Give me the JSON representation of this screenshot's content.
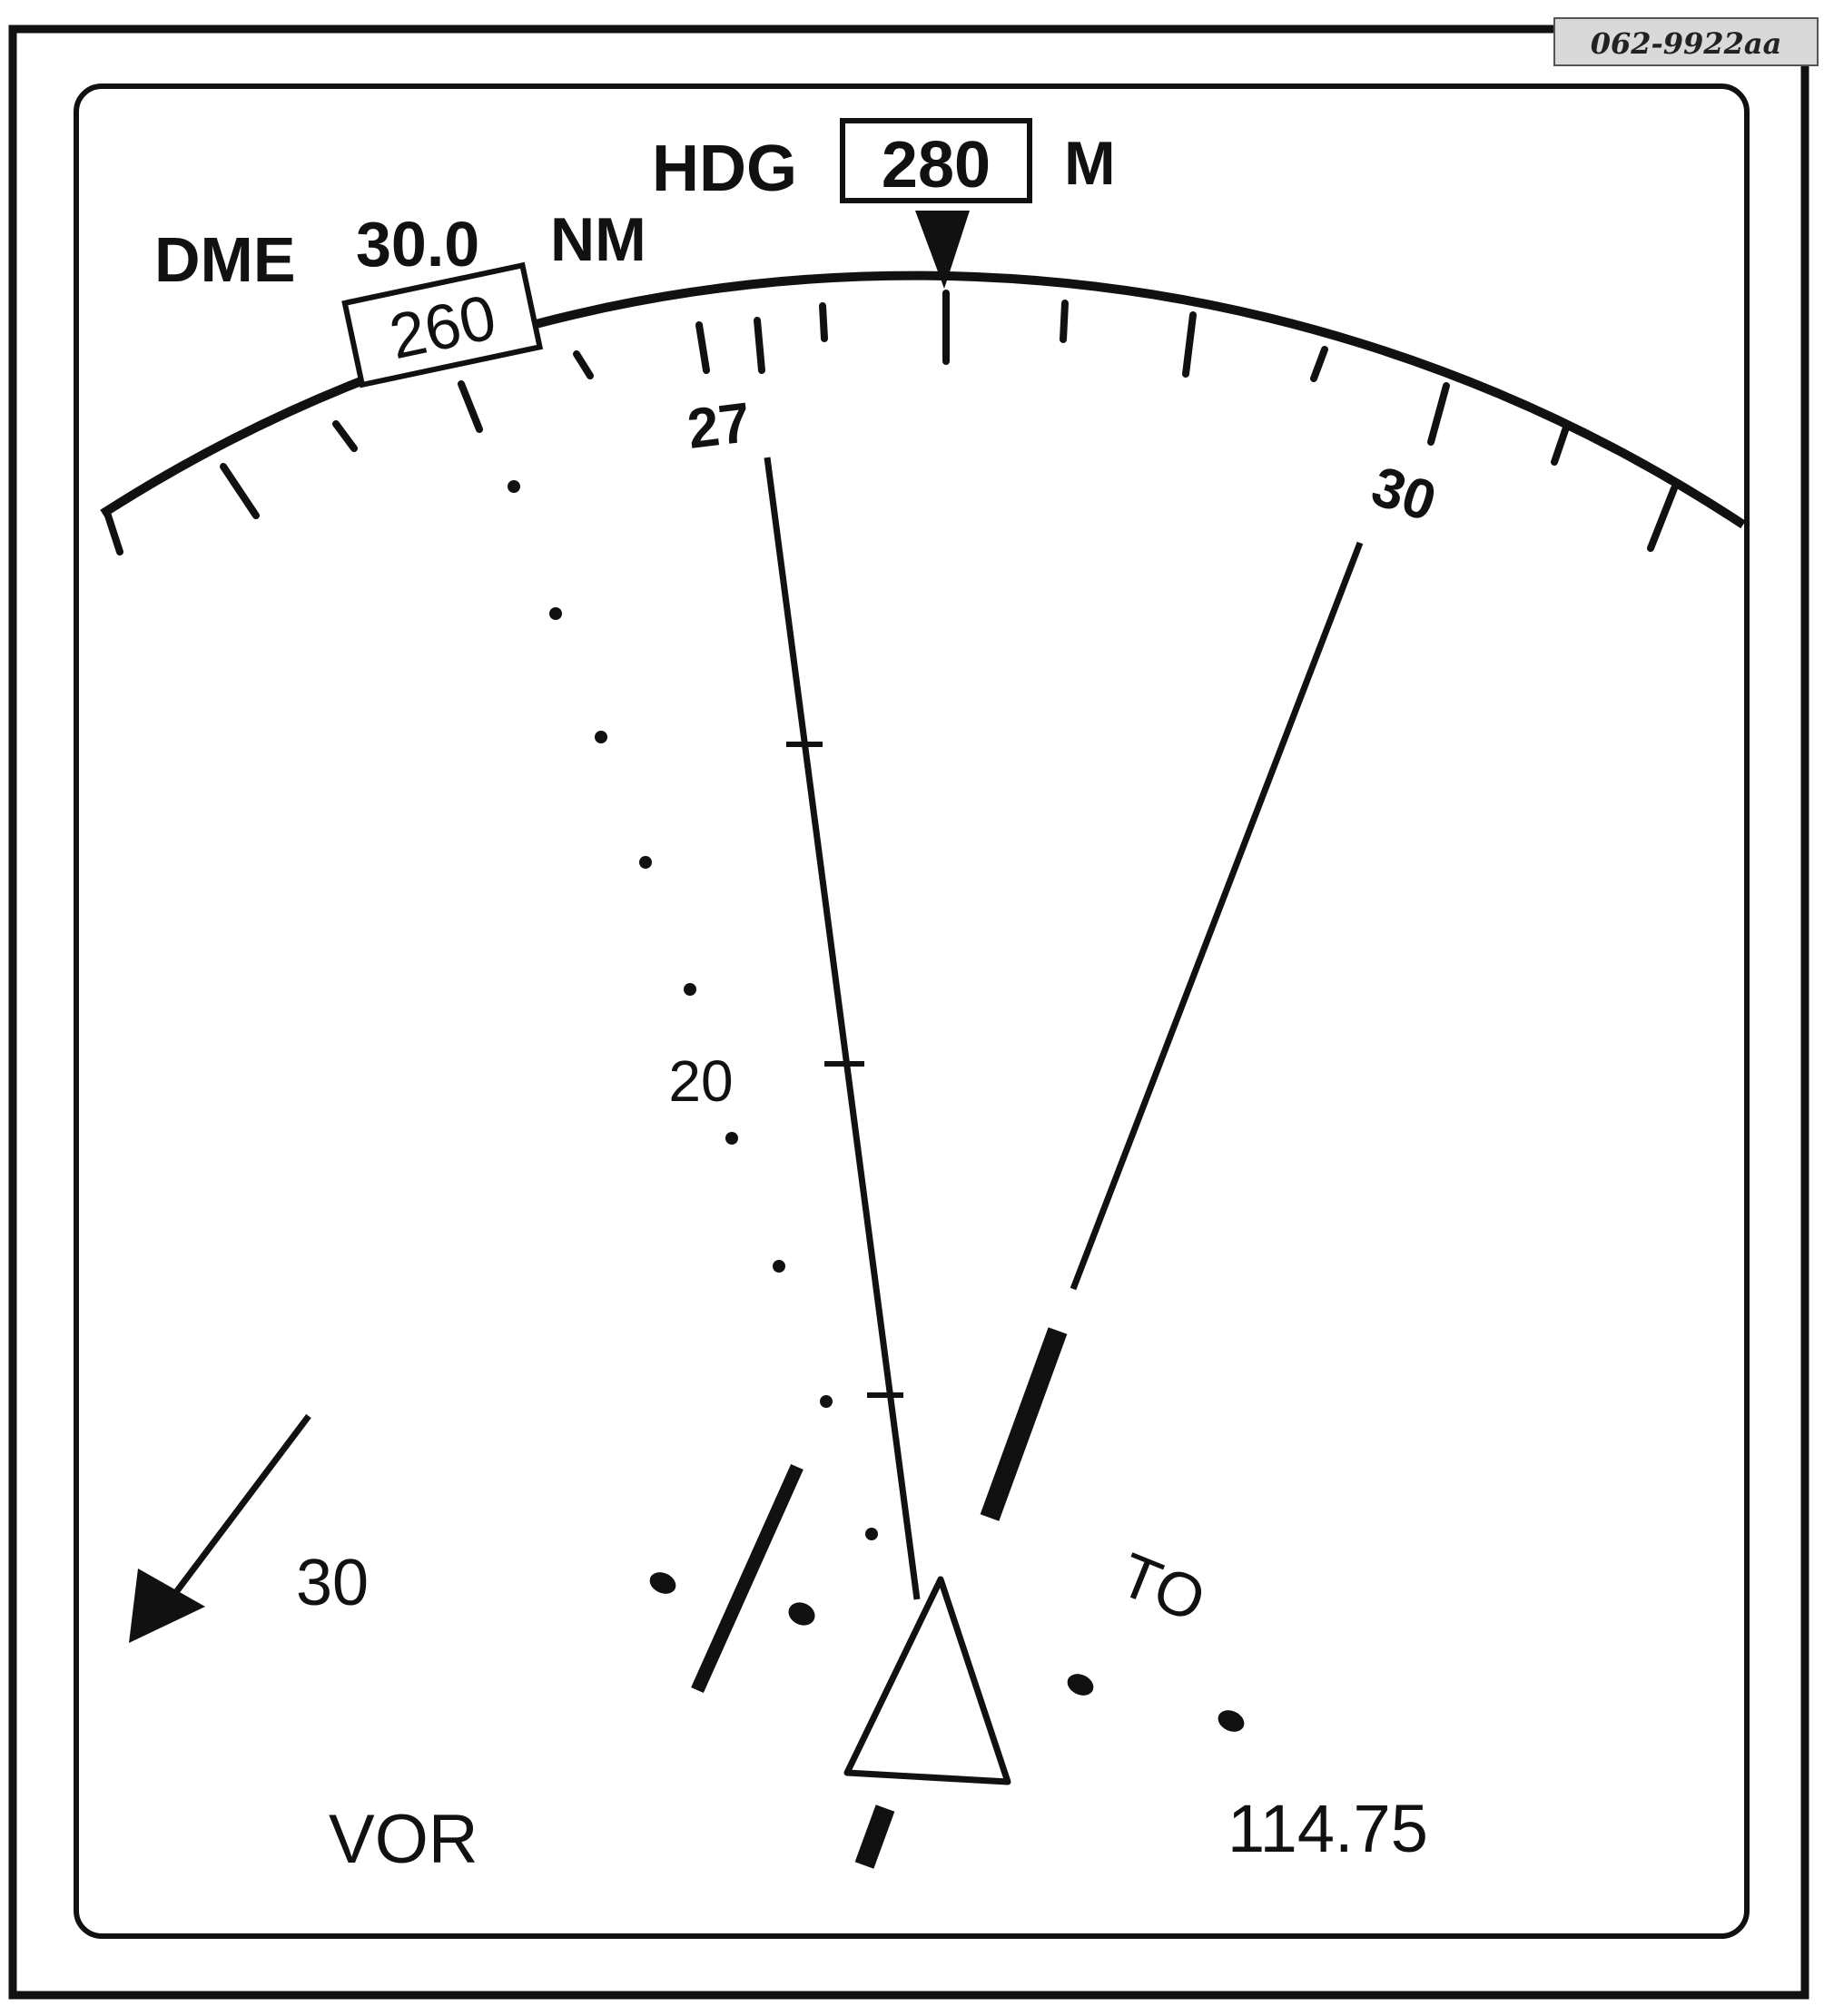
{
  "reference_code": "062-9922aa",
  "display": {
    "hdg_label": "HDG",
    "hdg_value": "280",
    "hdg_suffix": "M",
    "dme_label": "DME",
    "dme_value": "30.0",
    "dme_unit": "NM",
    "course_box": "260",
    "scale_label_left": "27",
    "scale_label_right": "30",
    "range_label": "20",
    "wind_speed": "30",
    "to_from": "TO",
    "nav_mode": "VOR",
    "frequency": "114.75"
  },
  "icons": {
    "heading_pointer": "heading-pointer-icon",
    "aircraft_symbol": "aircraft-triangle-icon",
    "wind_arrow": "wind-arrow-icon"
  }
}
